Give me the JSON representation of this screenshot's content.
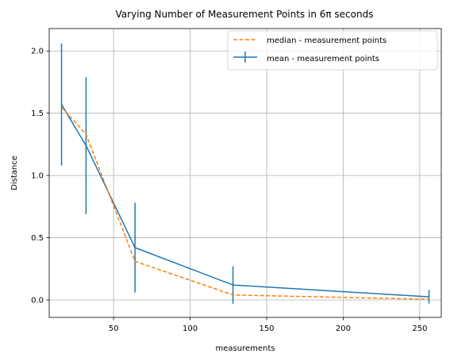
{
  "chart_data": {
    "type": "line",
    "title": "Varying Number of Measurement Points in 6π seconds",
    "xlabel": "measurements",
    "ylabel": "Distance",
    "xlim": [
      7.95,
      264.05
    ],
    "ylim": [
      -0.14,
      2.18
    ],
    "xticks": [
      50,
      100,
      150,
      200,
      250
    ],
    "xtick_labels": [
      "50",
      "100",
      "150",
      "200",
      "250"
    ],
    "yticks": [
      0.0,
      0.5,
      1.0,
      1.5,
      2.0
    ],
    "ytick_labels": [
      "0.0",
      "0.5",
      "1.0",
      "1.5",
      "2.0"
    ],
    "grid": true,
    "legend_position": "top-right",
    "x": [
      16,
      32,
      64,
      128,
      256
    ],
    "series": [
      {
        "name": "mean - measurement points",
        "style": "solid-errorbar",
        "color": "#1f77b4",
        "values": [
          1.57,
          1.24,
          0.42,
          0.12,
          0.025
        ],
        "error": [
          0.49,
          0.55,
          0.36,
          0.15,
          0.055
        ]
      },
      {
        "name": "median - measurement points",
        "style": "dashed",
        "color": "#ff7f0e",
        "values": [
          1.55,
          1.33,
          0.31,
          0.04,
          0.005
        ]
      }
    ]
  }
}
